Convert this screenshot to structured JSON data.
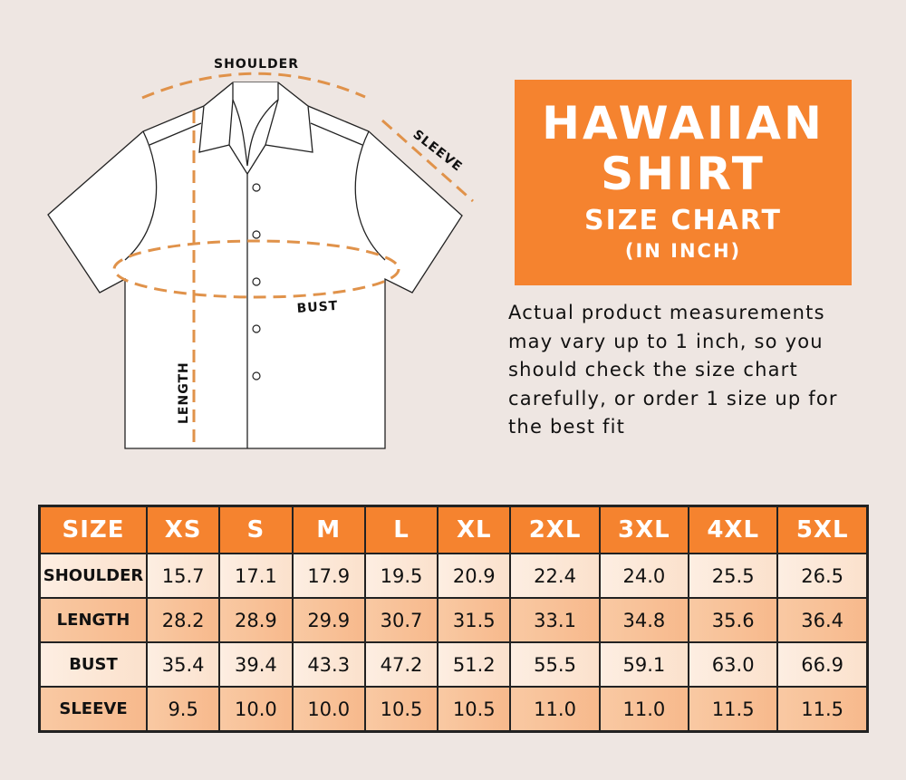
{
  "diagram": {
    "labels": {
      "shoulder": "SHOULDER",
      "sleeve": "SLEEVE",
      "bust": "BUST",
      "length": "LENGTH"
    },
    "dash_color": "#e0924a"
  },
  "title": {
    "line1": "HAWAIIAN",
    "line2": "SHIRT",
    "line3": "SIZE CHART",
    "line4": "(IN INCH)",
    "bg_color": "#f5832f"
  },
  "note": "Actual product measurements may vary up to 1 inch, so you should check the size chart carefully, or order 1 size up for the best fit",
  "table": {
    "headers": [
      "SIZE",
      "XS",
      "S",
      "M",
      "L",
      "XL",
      "2XL",
      "3XL",
      "4XL",
      "5XL"
    ],
    "rows": [
      {
        "label": "SHOULDER",
        "values": [
          "15.7",
          "17.1",
          "17.9",
          "19.5",
          "20.9",
          "22.4",
          "24.0",
          "25.5",
          "26.5"
        ]
      },
      {
        "label": "LENGTH",
        "values": [
          "28.2",
          "28.9",
          "29.9",
          "30.7",
          "31.5",
          "33.1",
          "34.8",
          "35.6",
          "36.4"
        ]
      },
      {
        "label": "BUST",
        "values": [
          "35.4",
          "39.4",
          "43.3",
          "47.2",
          "51.2",
          "55.5",
          "59.1",
          "63.0",
          "66.9"
        ]
      },
      {
        "label": "SLEEVE",
        "values": [
          "9.5",
          "10.0",
          "10.0",
          "10.5",
          "10.5",
          "11.0",
          "11.0",
          "11.5",
          "11.5"
        ]
      }
    ]
  }
}
